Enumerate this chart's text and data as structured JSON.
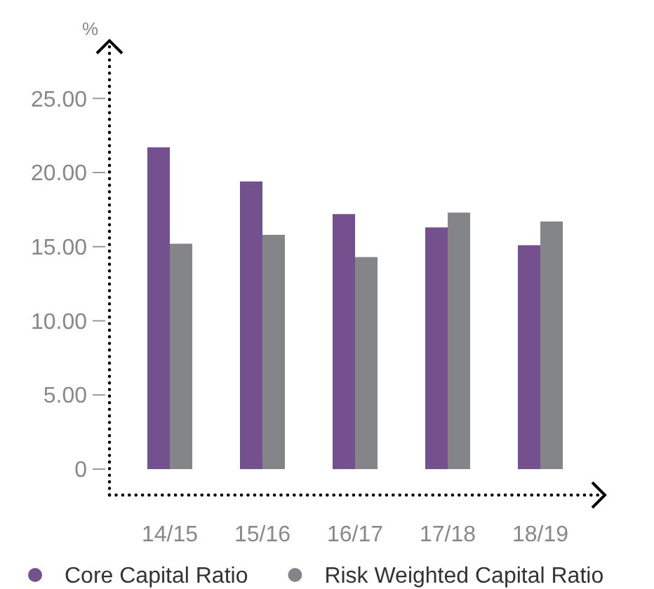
{
  "chart_data": {
    "type": "bar",
    "ylabel": "%",
    "categories": [
      "14/15",
      "15/16",
      "16/17",
      "17/18",
      "18/19"
    ],
    "series": [
      {
        "name": "Core Capital Ratio",
        "color": "#74508f",
        "values": [
          21.7,
          19.4,
          17.2,
          16.3,
          15.1
        ]
      },
      {
        "name": "Risk Weighted Capital Ratio",
        "color": "#848588",
        "values": [
          15.2,
          15.8,
          14.3,
          17.3,
          16.7
        ]
      }
    ],
    "ylim": [
      -1.75,
      28.8
    ],
    "yticks": [
      {
        "value": 0,
        "label": "0"
      },
      {
        "value": 5,
        "label": "5.00"
      },
      {
        "value": 10,
        "label": "10.00"
      },
      {
        "value": 15,
        "label": "15.00"
      },
      {
        "value": 20,
        "label": "20.00"
      },
      {
        "value": 25,
        "label": "25.00"
      }
    ],
    "grid": false,
    "legend": "bottom"
  }
}
